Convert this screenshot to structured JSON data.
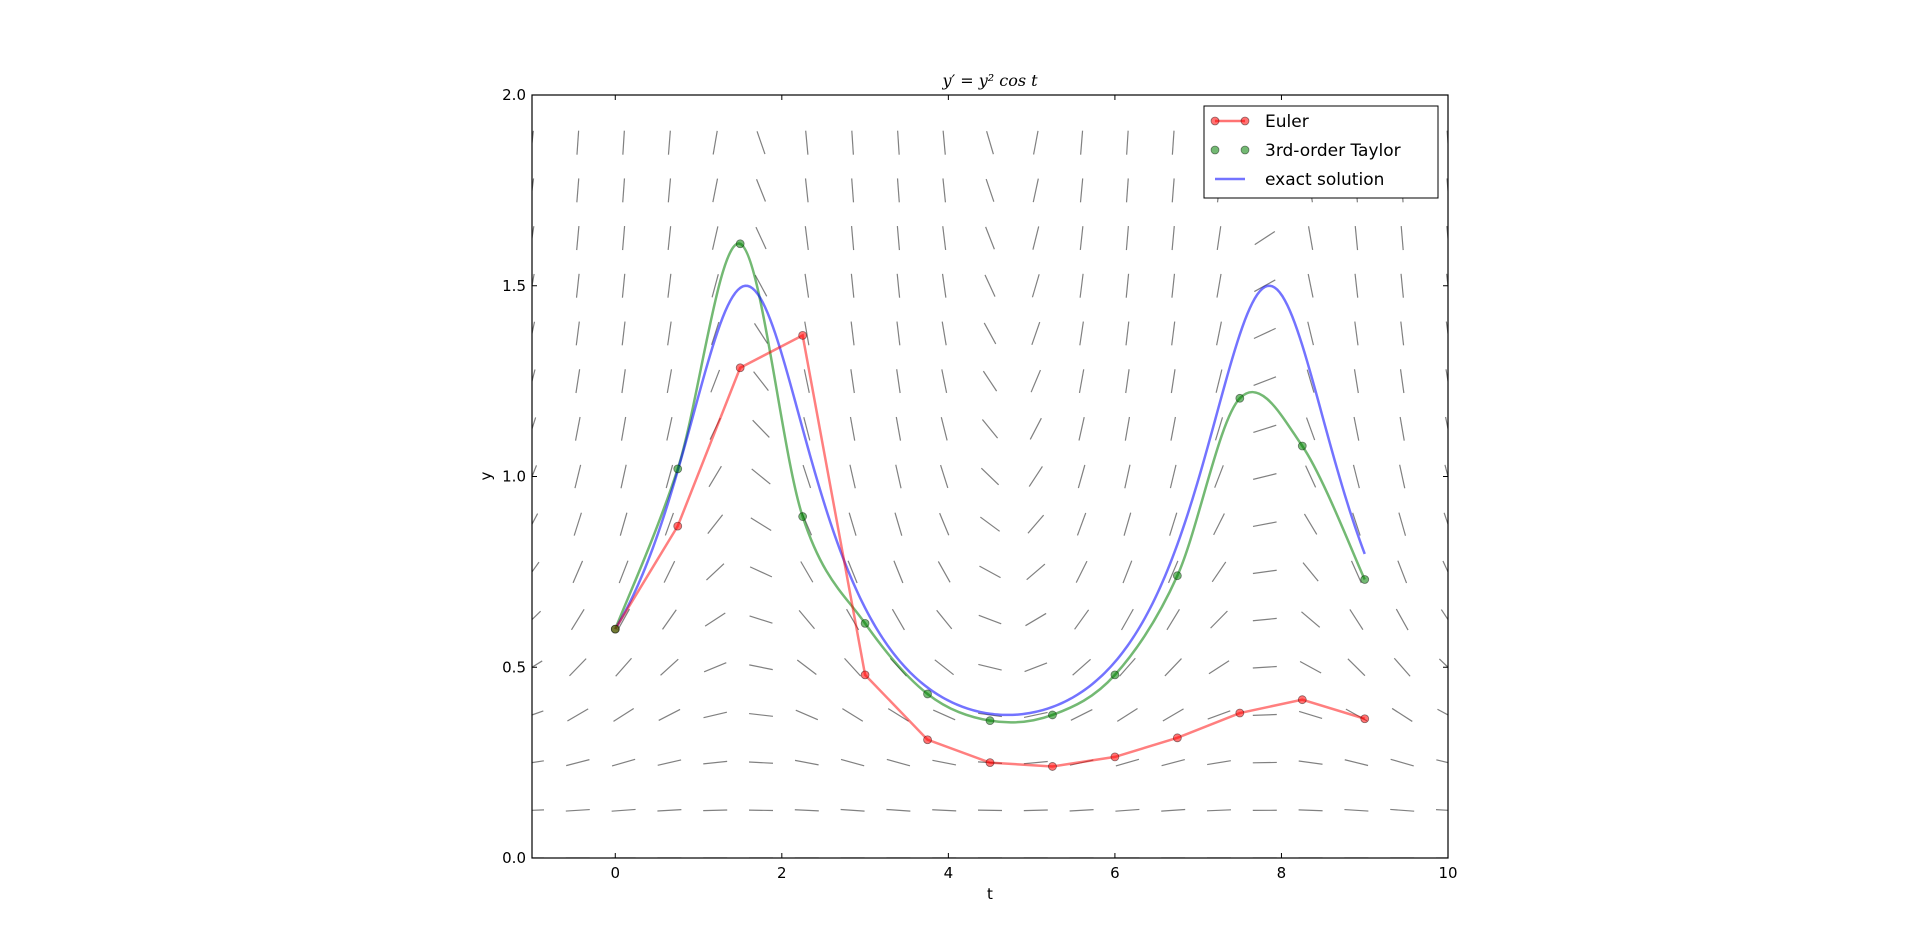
{
  "chart_data": {
    "type": "line",
    "title": "y′ = y² cos t",
    "xlabel": "t",
    "ylabel": "y",
    "xlim": [
      -1,
      10
    ],
    "ylim": [
      0,
      2
    ],
    "xticks": [
      0,
      2,
      4,
      6,
      8,
      10
    ],
    "yticks": [
      0.0,
      0.5,
      1.0,
      1.5,
      2.0
    ],
    "xtick_labels": [
      "0",
      "2",
      "4",
      "6",
      "8",
      "10"
    ],
    "ytick_labels": [
      "0.0",
      "0.5",
      "1.0",
      "1.5",
      "2.0"
    ],
    "grid": false,
    "legend_position": "top-right",
    "direction_field": {
      "equation": "y' = y^2 cos t",
      "t_start": -1.0,
      "t_step": 0.55,
      "t_count": 21,
      "y_start": 0.0,
      "y_step": 0.125,
      "y_count": 16,
      "color": "#808080"
    },
    "series": [
      {
        "name": "Euler",
        "style": "line+markers",
        "color": "#ff0000",
        "x": [
          0,
          0.75,
          1.5,
          2.25,
          3.0,
          3.75,
          4.5,
          5.25,
          6.0,
          6.75,
          7.5,
          8.25,
          9.0
        ],
        "y": [
          0.6,
          0.87,
          1.285,
          1.37,
          0.48,
          0.31,
          0.25,
          0.24,
          0.265,
          0.315,
          0.38,
          0.415,
          0.365
        ]
      },
      {
        "name": "3rd-order Taylor",
        "style": "markers+curve",
        "color": "#008000",
        "x": [
          0,
          0.75,
          1.5,
          2.25,
          3.0,
          3.75,
          4.5,
          5.25,
          6.0,
          6.75,
          7.5,
          8.25,
          9.0
        ],
        "y": [
          0.6,
          1.02,
          1.61,
          0.895,
          0.615,
          0.43,
          0.36,
          0.375,
          0.48,
          0.74,
          1.205,
          1.08,
          0.73
        ]
      },
      {
        "name": "exact solution",
        "style": "line",
        "color": "#0000ff",
        "x_range": [
          0,
          9
        ],
        "y0": 0.6
      }
    ]
  }
}
